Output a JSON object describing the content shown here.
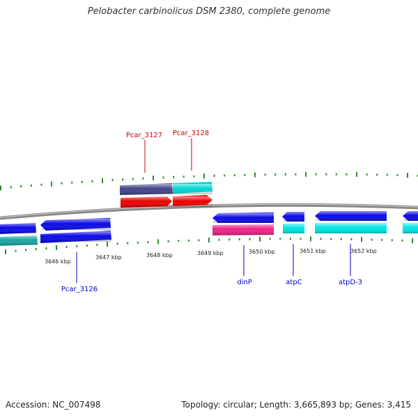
{
  "title": "Pelobacter carbinolicus DSM 2380, complete genome",
  "footer": {
    "accession": "Accession: NC_007498",
    "summary": "Topology: circular; Length: 3,665,893 bp; Genes: 3,415"
  },
  "scale_labels": [
    "3646 kbp",
    "3647 kbp",
    "3648 kbp",
    "3649 kbp",
    "3650 kbp",
    "3651 kbp",
    "3652 kbp"
  ],
  "gene_labels": {
    "above": [
      "Pcar_3127",
      "Pcar_3128"
    ],
    "below": [
      "Pcar_3126",
      "dinP",
      "atpC",
      "atpD-3"
    ]
  },
  "colors": {
    "backbone": "#8a8a8a",
    "tick": "#2e8b2e",
    "label_above": "#cc0000",
    "label_below": "#0000cc",
    "gene_blue": "#0a0ae6",
    "gene_cyan": "#00e5e5",
    "gene_teal": "#1aa5a5",
    "gene_red": "#ee0000",
    "gene_purple": "#44448a",
    "gene_magenta": "#ee2288"
  }
}
